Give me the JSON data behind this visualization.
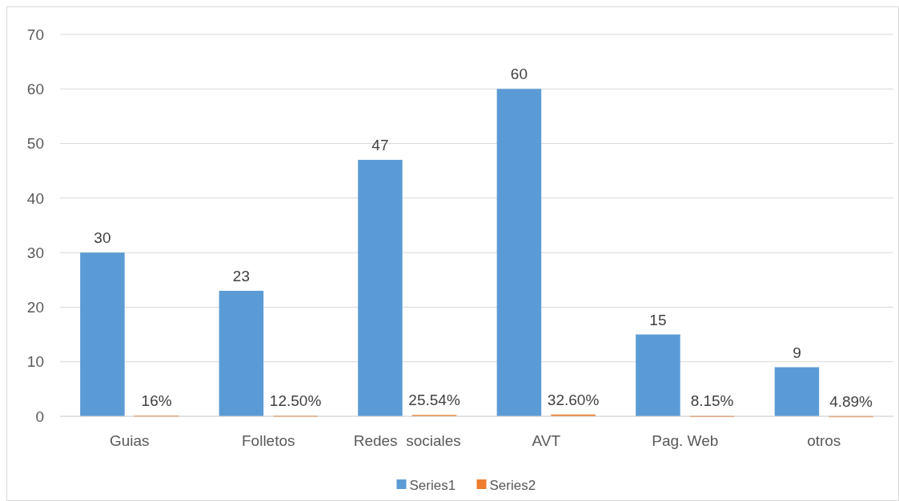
{
  "chart_data": {
    "type": "bar",
    "categories": [
      "Guias",
      "Folletos",
      "Redes  sociales",
      "AVT",
      "Pag. Web",
      "otros"
    ],
    "series": [
      {
        "name": "Series1",
        "color": "#5b9bd5",
        "values": [
          30,
          23,
          47,
          60,
          15,
          9
        ],
        "value_labels": [
          "30",
          "23",
          "47",
          "60",
          "15",
          "9"
        ]
      },
      {
        "name": "Series2",
        "color": "#ed7d31",
        "values": [
          0.16,
          0.125,
          0.2554,
          0.326,
          0.0815,
          0.0489
        ],
        "value_labels": [
          "16%",
          "12.50%",
          "25.54%",
          "32.60%",
          "8.15%",
          "4.89%"
        ]
      }
    ],
    "ylim": [
      0,
      70
    ],
    "yticks": [
      0,
      10,
      20,
      30,
      40,
      50,
      60,
      70
    ],
    "grid": "y",
    "legend": "bottom"
  }
}
